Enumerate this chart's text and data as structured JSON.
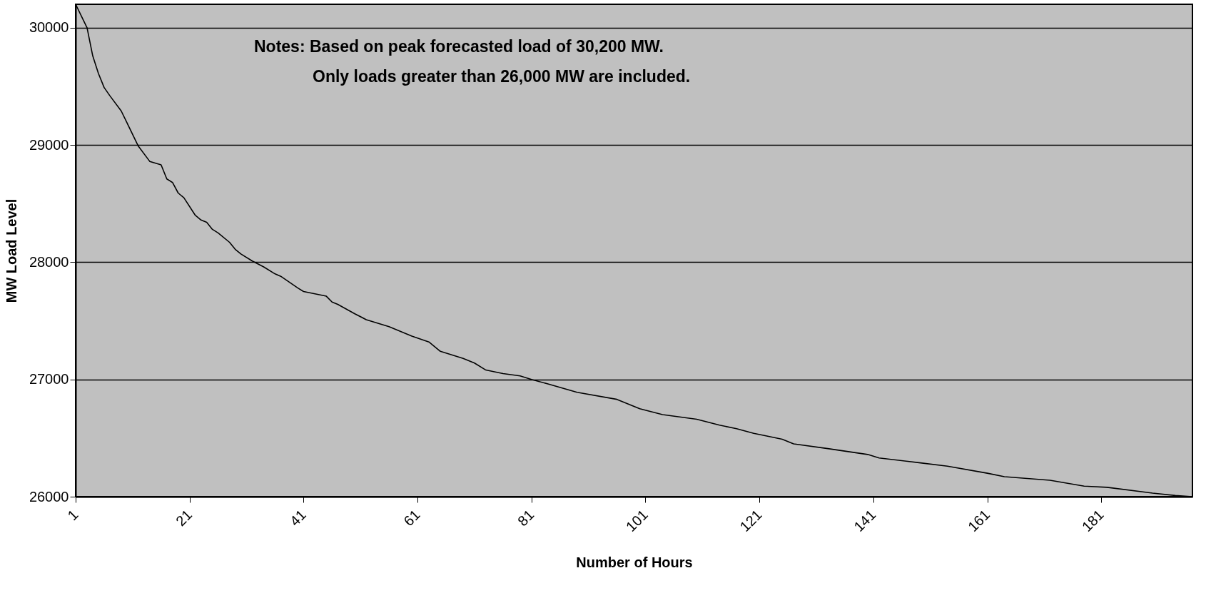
{
  "chart_data": {
    "type": "line",
    "xlabel": "Number of Hours",
    "ylabel": "MW Load Level",
    "annotations": [
      "Notes: Based on peak forecasted load of 30,200 MW.",
      "Only loads greater than 26,000 MW are included."
    ],
    "x": [
      1,
      3,
      4,
      5,
      6,
      7,
      9,
      10,
      12,
      14,
      16,
      17,
      18,
      19,
      20,
      22,
      23,
      24,
      25,
      26,
      28,
      29,
      30,
      32,
      34,
      36,
      37,
      40,
      41,
      45,
      46,
      47,
      50,
      52,
      56,
      60,
      63,
      65,
      69,
      71,
      73,
      76,
      79,
      81,
      84,
      89,
      96,
      100,
      104,
      110,
      114,
      117,
      120,
      122,
      125,
      127,
      133,
      140,
      142,
      149,
      154,
      161,
      164,
      172,
      178,
      182,
      190,
      194,
      197
    ],
    "series": [
      {
        "color": "#000000",
        "values": [
          30200,
          30000,
          29760,
          29610,
          29490,
          29420,
          29290,
          29190,
          28990,
          28860,
          28830,
          28710,
          28680,
          28590,
          28550,
          28400,
          28360,
          28340,
          28280,
          28250,
          28170,
          28110,
          28070,
          28010,
          27960,
          27900,
          27880,
          27780,
          27750,
          27710,
          27660,
          27640,
          27560,
          27510,
          27450,
          27370,
          27320,
          27240,
          27180,
          27140,
          27080,
          27050,
          27030,
          27000,
          26960,
          26890,
          26830,
          26750,
          26700,
          26660,
          26610,
          26580,
          26540,
          26520,
          26490,
          26450,
          26410,
          26360,
          26330,
          26290,
          26260,
          26200,
          26170,
          26140,
          26090,
          26080,
          26030,
          26010,
          26000
        ]
      }
    ],
    "xlim": [
      1,
      197
    ],
    "xticks": [
      1,
      21,
      41,
      61,
      81,
      101,
      121,
      141,
      161,
      181
    ],
    "ylim": [
      26000,
      30200
    ],
    "yticks": [
      26000,
      27000,
      28000,
      29000,
      30000
    ],
    "grid": "y",
    "marker": "none",
    "line_style": "solid"
  }
}
